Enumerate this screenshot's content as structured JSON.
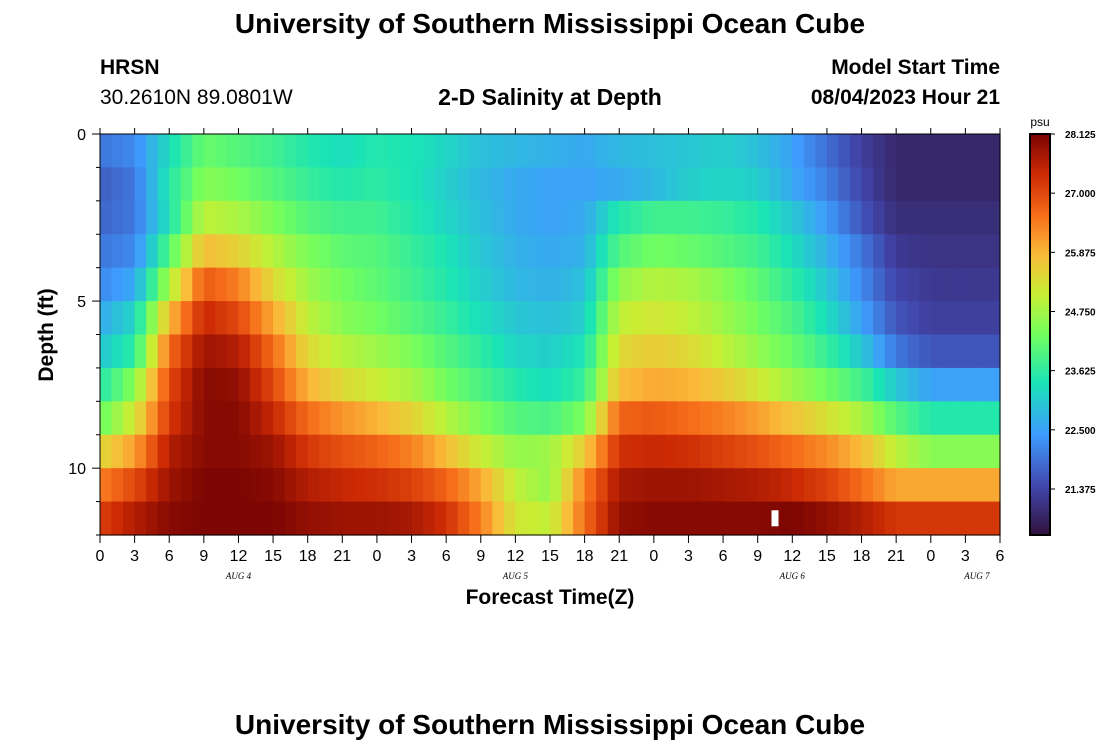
{
  "page": {
    "title": "University of Southern Mississippi Ocean Cube",
    "title_bottom": "University of Southern Mississippi Ocean Cube",
    "station": "HRSN",
    "coords": "30.2610N  89.0801W",
    "subtitle": "2-D Salinity at Depth",
    "model_start_label": "Model Start Time",
    "model_start_value": "08/04/2023 Hour 21"
  },
  "chart_data": {
    "type": "heatmap",
    "title": "2-D Salinity at Depth",
    "xlabel": "Forecast Time(Z)",
    "ylabel": "Depth (ft)",
    "x_ticks": [
      "0",
      "3",
      "6",
      "9",
      "12",
      "15",
      "18",
      "21",
      "0",
      "3",
      "6",
      "9",
      "12",
      "15",
      "18",
      "21",
      "0",
      "3",
      "6",
      "9",
      "12",
      "15",
      "18",
      "21",
      "0",
      "3",
      "6"
    ],
    "x_range_hours": [
      0,
      78
    ],
    "day_labels": [
      {
        "label": "AUG 4",
        "hour": 12
      },
      {
        "label": "AUG 5",
        "hour": 36
      },
      {
        "label": "AUG 6",
        "hour": 60
      },
      {
        "label": "AUG 7",
        "hour": 76
      }
    ],
    "y_ticks": [
      "0",
      "5",
      "10"
    ],
    "y_range_ft": [
      0,
      12
    ],
    "depth_layers_ft": [
      0.5,
      1.5,
      2.5,
      3.5,
      4.5,
      5.5,
      6.5,
      7.5,
      8.5,
      9.5,
      10.5,
      11.5
    ],
    "colorbar": {
      "unit": "psu",
      "min": 20.5,
      "max": 28.125,
      "tick_labels": [
        "28.125",
        "27.000",
        "25.875",
        "24.750",
        "23.625",
        "22.500",
        "21.375"
      ],
      "tick_values": [
        28.125,
        27.0,
        25.875,
        24.75,
        23.625,
        22.5,
        21.375
      ]
    },
    "series": [
      {
        "name": "0.5 ft",
        "hours": [
          0,
          3,
          6,
          9,
          12,
          15,
          18,
          21,
          24,
          27,
          30,
          33,
          36,
          39,
          42,
          45,
          48,
          51,
          54,
          57,
          60,
          63,
          66,
          69,
          72,
          75,
          78
        ],
        "values": [
          22.0,
          22.2,
          23.3,
          24.2,
          24.0,
          23.8,
          23.5,
          23.3,
          23.5,
          23.4,
          23.2,
          22.9,
          22.8,
          22.7,
          22.6,
          22.8,
          22.9,
          23.0,
          23.1,
          22.9,
          22.5,
          21.9,
          21.3,
          20.9,
          20.9,
          20.9,
          20.9
        ]
      },
      {
        "name": "1.5 ft",
        "hours": [
          0,
          3,
          6,
          9,
          12,
          15,
          18,
          21,
          24,
          27,
          30,
          33,
          36,
          39,
          42,
          45,
          48,
          51,
          54,
          57,
          60,
          63,
          66,
          69,
          72,
          75,
          78
        ],
        "values": [
          21.7,
          22.0,
          23.5,
          24.5,
          24.3,
          24.0,
          23.7,
          23.5,
          23.6,
          23.4,
          23.1,
          22.8,
          22.6,
          22.5,
          22.5,
          22.6,
          22.8,
          23.1,
          23.2,
          23.1,
          22.6,
          22.1,
          21.4,
          20.9,
          20.9,
          20.9,
          20.9
        ]
      },
      {
        "name": "2.5 ft",
        "hours": [
          0,
          3,
          6,
          9,
          12,
          15,
          18,
          21,
          24,
          27,
          30,
          33,
          36,
          39,
          42,
          45,
          48,
          51,
          54,
          57,
          60,
          63,
          66,
          69,
          72,
          75,
          78
        ],
        "values": [
          21.8,
          22.0,
          23.4,
          25.0,
          24.8,
          24.4,
          24.0,
          23.8,
          23.8,
          23.5,
          23.2,
          22.9,
          22.6,
          22.5,
          22.6,
          23.5,
          23.8,
          23.8,
          23.7,
          23.5,
          23.0,
          22.4,
          21.6,
          21.0,
          21.0,
          21.0,
          21.0
        ]
      },
      {
        "name": "3.5 ft",
        "hours": [
          0,
          3,
          6,
          9,
          12,
          15,
          18,
          21,
          24,
          27,
          30,
          33,
          36,
          39,
          42,
          45,
          48,
          51,
          54,
          57,
          60,
          63,
          66,
          69,
          72,
          75,
          78
        ],
        "values": [
          22.0,
          22.2,
          24.0,
          25.8,
          25.5,
          24.9,
          24.4,
          24.1,
          24.0,
          23.7,
          23.4,
          23.0,
          22.7,
          22.6,
          22.7,
          24.0,
          24.3,
          24.2,
          24.0,
          23.8,
          23.3,
          22.7,
          22.0,
          21.2,
          21.1,
          21.1,
          21.1
        ]
      },
      {
        "name": "4.5 ft",
        "hours": [
          0,
          3,
          6,
          9,
          12,
          15,
          18,
          21,
          24,
          27,
          30,
          33,
          36,
          39,
          42,
          45,
          48,
          51,
          54,
          57,
          60,
          63,
          66,
          69,
          72,
          75,
          78
        ],
        "values": [
          22.2,
          22.6,
          24.8,
          26.8,
          26.4,
          25.4,
          24.7,
          24.3,
          24.1,
          23.8,
          23.5,
          23.1,
          22.8,
          22.7,
          22.9,
          24.6,
          24.9,
          24.8,
          24.5,
          24.1,
          23.6,
          23.0,
          22.2,
          21.4,
          21.2,
          21.2,
          21.2
        ]
      },
      {
        "name": "5.5 ft",
        "hours": [
          0,
          3,
          6,
          9,
          12,
          15,
          18,
          21,
          24,
          27,
          30,
          33,
          36,
          39,
          42,
          45,
          48,
          51,
          54,
          57,
          60,
          63,
          66,
          69,
          72,
          75,
          78
        ],
        "values": [
          22.6,
          23.2,
          25.8,
          27.4,
          27.0,
          26.0,
          25.0,
          24.5,
          24.3,
          24.0,
          23.7,
          23.3,
          23.0,
          22.9,
          23.1,
          25.0,
          25.2,
          25.0,
          24.7,
          24.3,
          23.9,
          23.3,
          22.5,
          21.6,
          21.3,
          21.3,
          21.3
        ]
      },
      {
        "name": "6.5 ft",
        "hours": [
          0,
          3,
          6,
          9,
          12,
          15,
          18,
          21,
          24,
          27,
          30,
          33,
          36,
          39,
          42,
          45,
          48,
          51,
          54,
          57,
          60,
          63,
          66,
          69,
          72,
          75,
          78
        ],
        "values": [
          23.0,
          23.6,
          26.6,
          27.8,
          27.6,
          26.6,
          25.4,
          24.9,
          24.7,
          24.4,
          24.0,
          23.6,
          23.2,
          23.1,
          23.4,
          25.4,
          25.6,
          25.4,
          25.0,
          24.6,
          24.2,
          23.7,
          23.0,
          22.0,
          21.6,
          21.6,
          21.6
        ]
      },
      {
        "name": "7.5 ft",
        "hours": [
          0,
          3,
          6,
          9,
          12,
          15,
          18,
          21,
          24,
          27,
          30,
          33,
          36,
          39,
          42,
          45,
          48,
          51,
          54,
          57,
          60,
          63,
          66,
          69,
          72,
          75,
          78
        ],
        "values": [
          23.5,
          24.5,
          27.0,
          28.0,
          27.9,
          27.0,
          25.9,
          25.4,
          25.1,
          24.8,
          24.3,
          23.9,
          23.5,
          23.3,
          23.7,
          25.8,
          26.0,
          25.9,
          25.6,
          25.2,
          24.7,
          24.3,
          23.8,
          23.0,
          22.5,
          22.5,
          22.5
        ]
      },
      {
        "name": "8.5 ft",
        "hours": [
          0,
          3,
          6,
          9,
          12,
          15,
          18,
          21,
          24,
          27,
          30,
          33,
          36,
          39,
          42,
          45,
          48,
          51,
          54,
          57,
          60,
          63,
          66,
          69,
          72,
          75,
          78
        ],
        "values": [
          24.2,
          25.2,
          27.2,
          28.0,
          28.0,
          27.4,
          26.6,
          26.2,
          25.9,
          25.5,
          24.9,
          24.4,
          24.0,
          23.9,
          24.4,
          26.7,
          26.8,
          26.6,
          26.4,
          26.1,
          25.7,
          25.3,
          24.8,
          24.0,
          23.5,
          23.5,
          23.5
        ]
      },
      {
        "name": "9.5 ft",
        "hours": [
          0,
          3,
          6,
          9,
          12,
          15,
          18,
          21,
          24,
          27,
          30,
          33,
          36,
          39,
          42,
          45,
          48,
          51,
          54,
          57,
          60,
          63,
          66,
          69,
          72,
          75,
          78
        ],
        "values": [
          25.4,
          26.1,
          27.6,
          28.0,
          28.0,
          27.8,
          27.2,
          26.9,
          26.7,
          26.4,
          25.8,
          25.1,
          24.6,
          24.7,
          25.6,
          27.3,
          27.4,
          27.3,
          27.1,
          26.9,
          26.6,
          26.3,
          25.8,
          25.0,
          24.5,
          24.5,
          24.5
        ]
      },
      {
        "name": "10.5 ft",
        "hours": [
          0,
          3,
          6,
          9,
          12,
          15,
          18,
          21,
          24,
          27,
          30,
          33,
          36,
          39,
          42,
          45,
          48,
          51,
          54,
          57,
          60,
          63,
          66,
          69,
          72,
          75,
          78
        ],
        "values": [
          26.4,
          27.0,
          27.8,
          28.1,
          28.1,
          28.0,
          27.6,
          27.4,
          27.3,
          27.1,
          26.7,
          26.0,
          25.0,
          24.6,
          26.4,
          27.7,
          27.8,
          27.8,
          27.7,
          27.6,
          27.4,
          27.1,
          26.6,
          26.0,
          26.0,
          26.0,
          26.0
        ]
      },
      {
        "name": "11.5 ft",
        "hours": [
          0,
          3,
          6,
          9,
          12,
          15,
          18,
          21,
          24,
          27,
          30,
          33,
          36,
          39,
          42,
          45,
          48,
          51,
          54,
          57,
          60,
          63,
          66,
          69,
          72,
          75,
          78
        ],
        "values": [
          27.1,
          27.6,
          28.0,
          28.1,
          28.1,
          28.1,
          27.9,
          27.8,
          27.8,
          27.7,
          27.3,
          26.4,
          25.2,
          25.0,
          26.6,
          27.9,
          28.0,
          28.0,
          28.0,
          28.0,
          28.1,
          27.9,
          27.6,
          27.2,
          27.2,
          27.2,
          27.2
        ]
      }
    ],
    "marker": {
      "hour": 58.5,
      "depth_ft": 11.5,
      "color": "#ffffff"
    }
  }
}
